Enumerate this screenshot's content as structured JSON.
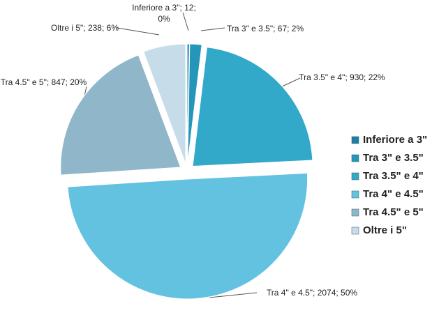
{
  "chart_data": {
    "type": "pie",
    "categories": [
      "Inferiore a 3\"",
      "Tra 3\" e 3.5\"",
      "Tra 3.5\" e 4\"",
      "Tra 4\" e 4.5\"",
      "Tra 4.5\" e 5\"",
      "Oltre i 5\""
    ],
    "values": [
      12,
      67,
      930,
      2074,
      847,
      238
    ],
    "value_labels": [
      "Inferiore a 3\"; 12; 0%",
      "Tra 3\" e 3.5\"; 67;  2%",
      "Tra 3.5\" e 4\"; 930; 22%",
      "Tra 4\" e 4.5\"; 2074; 50%",
      "Tra 4.5\" e 5\"; 847; 20%",
      "Oltre i 5\"; 238; 6%"
    ],
    "colors": [
      "#1d7ea3",
      "#2496ba",
      "#32a9c9",
      "#62c2e0",
      "#8fb7c9",
      "#c6dde9"
    ],
    "legend": "right"
  }
}
